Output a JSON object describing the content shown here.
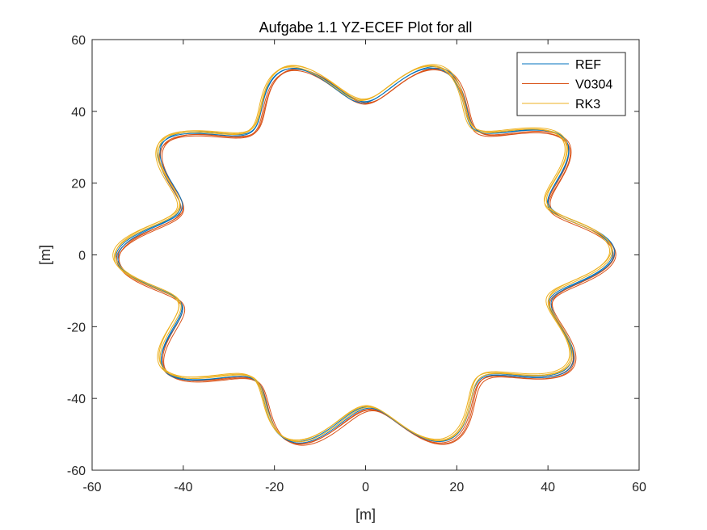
{
  "chart_data": {
    "type": "line",
    "title": "Aufgabe 1.1 YZ-ECEF Plot for all",
    "xlabel": "[m]",
    "ylabel": "[m]",
    "xlim": [
      -60,
      60
    ],
    "ylim": [
      -60,
      60
    ],
    "xticks": [
      "-60",
      "-40",
      "-20",
      "0",
      "20",
      "40",
      "60"
    ],
    "yticks": [
      "-60",
      "-40",
      "-20",
      "0",
      "20",
      "40",
      "60"
    ],
    "grid": false,
    "legend_position": "top-right",
    "series": [
      {
        "name": "REF",
        "color": "#0072BD",
        "shape": {
          "base_radius": 48.5,
          "amplitude": 6.0,
          "lobes": 10,
          "phase_deg": 7,
          "rotation_deg": 0
        }
      },
      {
        "name": "V0304",
        "color": "#D95319",
        "shape": {
          "base_radius": 48.5,
          "amplitude": 6.0,
          "lobes": 10,
          "phase_deg": 7,
          "rotation_deg": 0
        }
      },
      {
        "name": "RK3",
        "color": "#EDB120",
        "shape": {
          "base_radius": 48.5,
          "amplitude": 6.0,
          "lobes": 10,
          "phase_deg": 7,
          "rotation_deg": 0
        }
      }
    ]
  }
}
